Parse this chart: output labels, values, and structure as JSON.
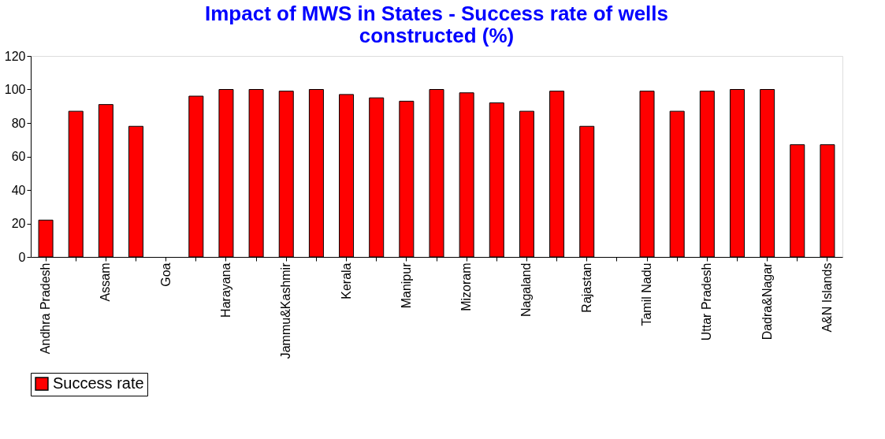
{
  "chart_data": {
    "type": "bar",
    "title": "Impact of MWS in States - Success rate of wells constructed (%)",
    "categories": [
      "Andhra Pradesh",
      null,
      "Assam",
      null,
      "Goa",
      null,
      "Harayana",
      null,
      "Jammu&Kashmir",
      null,
      "Kerala",
      null,
      "Manipur",
      null,
      "Mizoram",
      null,
      "Nagaland",
      null,
      "Rajastan",
      null,
      "Tamil Nadu",
      null,
      "Uttar Pradesh",
      null,
      "Dadra&Nagar",
      null,
      "A&N Islands"
    ],
    "series": [
      {
        "name": "Success rate",
        "color": "#ff0000",
        "values": [
          22,
          87,
          91,
          78,
          null,
          96,
          100,
          100,
          99,
          100,
          97,
          95,
          93,
          100,
          98,
          92,
          87,
          99,
          78,
          null,
          99,
          87,
          99,
          100,
          100,
          67,
          67
        ]
      }
    ],
    "ylim": [
      0,
      120
    ],
    "yticks": [
      0,
      20,
      40,
      60,
      80,
      100,
      120
    ],
    "grid": false,
    "legend": "bottom"
  }
}
